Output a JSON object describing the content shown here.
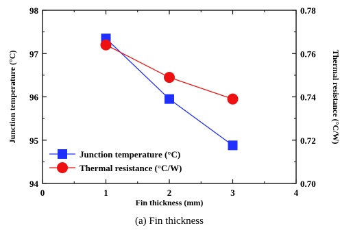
{
  "chart_data": {
    "type": "line",
    "x": [
      1,
      2,
      3
    ],
    "xlim": [
      0,
      4
    ],
    "x_ticks": [
      "0",
      "1",
      "2",
      "3",
      "4"
    ],
    "xlabel": "Fin thickness (mm)",
    "caption": "(a) Fin thickness",
    "left_axis": {
      "label": "Junction temperature (°C)",
      "ylim": [
        94,
        98
      ],
      "ticks": [
        "94",
        "95",
        "96",
        "97",
        "98"
      ]
    },
    "right_axis": {
      "label": "Thermal resistance (°C/W)",
      "ylim": [
        0.7,
        0.78
      ],
      "ticks": [
        "0.70",
        "0.72",
        "0.74",
        "0.76",
        "0.78"
      ]
    },
    "series": [
      {
        "name": "Junction temperature (°C)",
        "axis": "left",
        "marker": "square",
        "color": "#1f2fff",
        "values": [
          97.35,
          95.95,
          94.88
        ]
      },
      {
        "name": "Thermal resistance (°C/W)",
        "axis": "right",
        "marker": "circle",
        "color": "#ee1111",
        "values": [
          0.764,
          0.749,
          0.739
        ]
      }
    ],
    "legend_position": "bottom-left",
    "grid": false
  }
}
